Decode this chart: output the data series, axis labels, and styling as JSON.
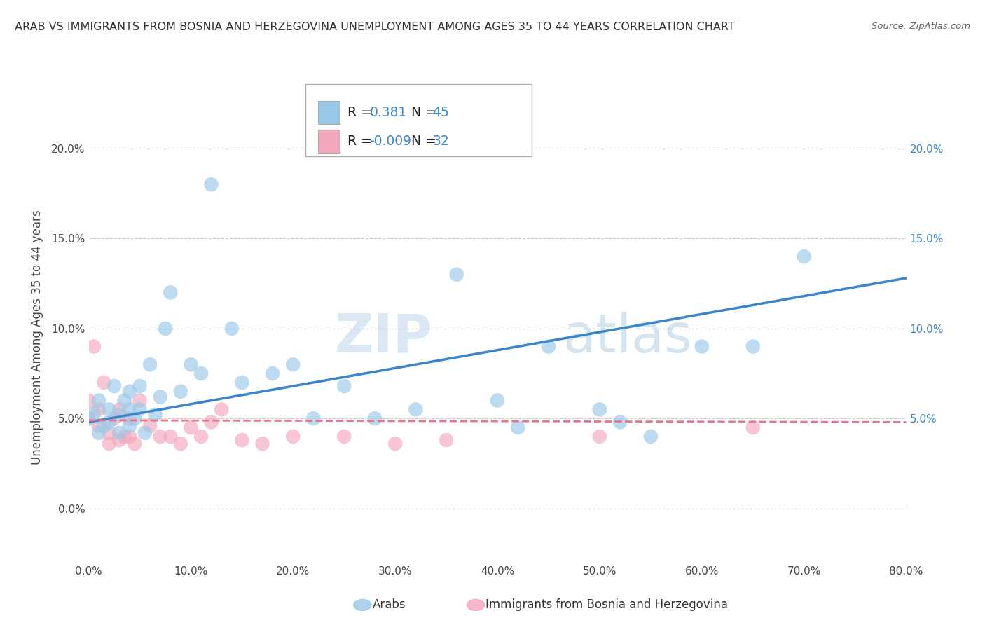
{
  "title": "ARAB VS IMMIGRANTS FROM BOSNIA AND HERZEGOVINA UNEMPLOYMENT AMONG AGES 35 TO 44 YEARS CORRELATION CHART",
  "source": "Source: ZipAtlas.com",
  "ylabel": "Unemployment Among Ages 35 to 44 years",
  "watermark_zip": "ZIP",
  "watermark_atlas": "atlas",
  "xlim": [
    0.0,
    0.8
  ],
  "ylim": [
    -0.03,
    0.22
  ],
  "xticks": [
    0.0,
    0.1,
    0.2,
    0.3,
    0.4,
    0.5,
    0.6,
    0.7,
    0.8
  ],
  "xticklabels": [
    "0.0%",
    "10.0%",
    "20.0%",
    "30.0%",
    "40.0%",
    "50.0%",
    "60.0%",
    "70.0%",
    "80.0%"
  ],
  "yticks_left": [
    0.0,
    0.05,
    0.1,
    0.15,
    0.2
  ],
  "yticklabels_left": [
    "0.0%",
    "5.0%",
    "10.0%",
    "15.0%",
    "20.0%"
  ],
  "yticks_right": [
    0.05,
    0.1,
    0.15,
    0.2
  ],
  "yticklabels_right": [
    "5.0%",
    "10.0%",
    "15.0%",
    "20.0%"
  ],
  "arab_R": "0.381",
  "arab_N": "45",
  "bosnia_R": "-0.009",
  "bosnia_N": "32",
  "arab_color": "#99c9e8",
  "bosnia_color": "#f4a7bc",
  "arab_line_color": "#3a86c8",
  "bosnia_line_color": "#e8768a",
  "grid_color": "#cccccc",
  "background_color": "#ffffff",
  "arab_scatter_x": [
    0.0,
    0.005,
    0.01,
    0.01,
    0.015,
    0.02,
    0.02,
    0.025,
    0.03,
    0.03,
    0.035,
    0.04,
    0.04,
    0.04,
    0.045,
    0.05,
    0.05,
    0.055,
    0.06,
    0.065,
    0.07,
    0.075,
    0.08,
    0.09,
    0.1,
    0.11,
    0.12,
    0.14,
    0.15,
    0.18,
    0.2,
    0.22,
    0.25,
    0.28,
    0.32,
    0.36,
    0.4,
    0.42,
    0.45,
    0.5,
    0.52,
    0.55,
    0.6,
    0.65,
    0.7
  ],
  "arab_scatter_y": [
    0.05,
    0.053,
    0.042,
    0.06,
    0.046,
    0.048,
    0.055,
    0.068,
    0.042,
    0.052,
    0.06,
    0.046,
    0.055,
    0.065,
    0.05,
    0.068,
    0.055,
    0.042,
    0.08,
    0.052,
    0.062,
    0.1,
    0.12,
    0.065,
    0.08,
    0.075,
    0.18,
    0.1,
    0.07,
    0.075,
    0.08,
    0.05,
    0.068,
    0.05,
    0.055,
    0.13,
    0.06,
    0.045,
    0.09,
    0.055,
    0.048,
    0.04,
    0.09,
    0.09,
    0.14
  ],
  "bosnia_scatter_x": [
    0.0,
    0.0,
    0.005,
    0.01,
    0.01,
    0.015,
    0.02,
    0.02,
    0.025,
    0.03,
    0.03,
    0.035,
    0.04,
    0.04,
    0.045,
    0.05,
    0.06,
    0.07,
    0.08,
    0.09,
    0.1,
    0.11,
    0.12,
    0.13,
    0.15,
    0.17,
    0.2,
    0.25,
    0.3,
    0.35,
    0.5,
    0.65
  ],
  "bosnia_scatter_y": [
    0.05,
    0.06,
    0.09,
    0.046,
    0.055,
    0.07,
    0.036,
    0.042,
    0.05,
    0.038,
    0.055,
    0.04,
    0.04,
    0.05,
    0.036,
    0.06,
    0.046,
    0.04,
    0.04,
    0.036,
    0.045,
    0.04,
    0.048,
    0.055,
    0.038,
    0.036,
    0.04,
    0.04,
    0.036,
    0.038,
    0.04,
    0.045
  ],
  "arab_trend_x0": 0.0,
  "arab_trend_x1": 0.8,
  "arab_trend_y0": 0.048,
  "arab_trend_y1": 0.128,
  "bosnia_trend_x0": 0.0,
  "bosnia_trend_x1": 0.8,
  "bosnia_trend_y0": 0.049,
  "bosnia_trend_y1": 0.048,
  "legend_arab_label": "R =  0.381   N = 45",
  "legend_bosnia_label": "R = -0.009   N = 32",
  "bottom_legend_arab": "Arabs",
  "bottom_legend_bosnia": "Immigrants from Bosnia and Herzegovina"
}
